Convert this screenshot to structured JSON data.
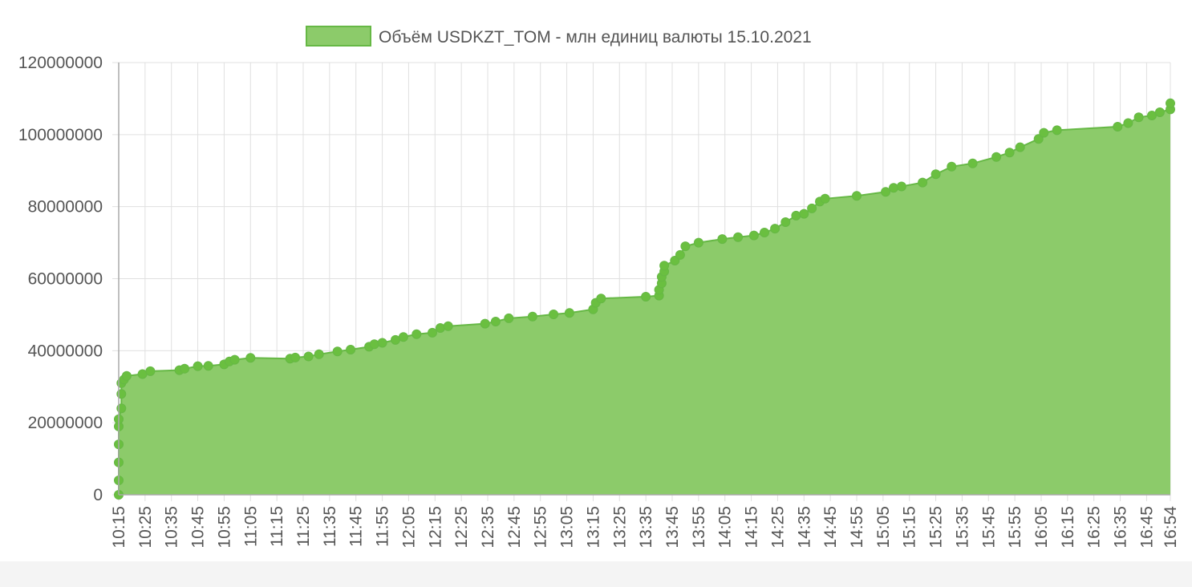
{
  "chart_data": {
    "type": "area",
    "legend": {
      "label": "Объём USDKZT_TOM - млн единиц валюты 15.10.2021",
      "color": "#8CCB6A",
      "border": "#66B845",
      "position": "top"
    },
    "colors": {
      "fill": "#8CCB6A",
      "line": "#66B845",
      "point": "#6ABF40",
      "grid": "#e0e0e0",
      "axis": "#aaaaaa"
    },
    "y_ticks": [
      "0",
      "20000000",
      "40000000",
      "60000000",
      "80000000",
      "100000000",
      "120000000"
    ],
    "ylim": [
      0,
      120000000
    ],
    "x_ticks": [
      "10:15",
      "10:25",
      "10:35",
      "10:45",
      "10:55",
      "11:05",
      "11:15",
      "11:25",
      "11:35",
      "11:45",
      "11:55",
      "12:05",
      "12:15",
      "12:25",
      "12:35",
      "12:45",
      "12:55",
      "13:05",
      "13:15",
      "13:25",
      "13:35",
      "13:45",
      "13:55",
      "14:05",
      "14:15",
      "14:25",
      "14:35",
      "14:45",
      "14:55",
      "15:05",
      "15:15",
      "15:25",
      "15:35",
      "15:45",
      "15:55",
      "16:05",
      "16:15",
      "16:25",
      "16:35",
      "16:45",
      "16:54"
    ],
    "xlim": [
      "10:15",
      "16:54"
    ],
    "grid": true,
    "points": [
      [
        "10:15",
        0
      ],
      [
        "10:15",
        4000000
      ],
      [
        "10:15",
        9000000
      ],
      [
        "10:15",
        14000000
      ],
      [
        "10:15",
        19000000
      ],
      [
        "10:15",
        21000000
      ],
      [
        "10:16",
        24000000
      ],
      [
        "10:16",
        28000000
      ],
      [
        "10:16",
        31000000
      ],
      [
        "10:17",
        32000000
      ],
      [
        "10:18",
        33000000
      ],
      [
        "10:24",
        33500000
      ],
      [
        "10:27",
        34300000
      ],
      [
        "10:38",
        34600000
      ],
      [
        "10:40",
        35000000
      ],
      [
        "10:45",
        35700000
      ],
      [
        "10:49",
        35800000
      ],
      [
        "10:55",
        36200000
      ],
      [
        "10:57",
        37000000
      ],
      [
        "10:59",
        37500000
      ],
      [
        "11:05",
        38000000
      ],
      [
        "11:20",
        37800000
      ],
      [
        "11:22",
        38100000
      ],
      [
        "11:27",
        38400000
      ],
      [
        "11:31",
        39000000
      ],
      [
        "11:38",
        39800000
      ],
      [
        "11:43",
        40300000
      ],
      [
        "11:50",
        41100000
      ],
      [
        "11:52",
        41800000
      ],
      [
        "11:55",
        42200000
      ],
      [
        "12:00",
        43000000
      ],
      [
        "12:03",
        43800000
      ],
      [
        "12:08",
        44600000
      ],
      [
        "12:14",
        45000000
      ],
      [
        "12:17",
        46300000
      ],
      [
        "12:20",
        46800000
      ],
      [
        "12:34",
        47500000
      ],
      [
        "12:38",
        48100000
      ],
      [
        "12:43",
        49000000
      ],
      [
        "12:52",
        49500000
      ],
      [
        "13:00",
        50100000
      ],
      [
        "13:06",
        50500000
      ],
      [
        "13:15",
        51500000
      ],
      [
        "13:16",
        53300000
      ],
      [
        "13:18",
        54500000
      ],
      [
        "13:35",
        55000000
      ],
      [
        "13:40",
        55300000
      ],
      [
        "13:40",
        56900000
      ],
      [
        "13:41",
        58700000
      ],
      [
        "13:41",
        60500000
      ],
      [
        "13:42",
        62000000
      ],
      [
        "13:42",
        63600000
      ],
      [
        "13:46",
        65000000
      ],
      [
        "13:48",
        66600000
      ],
      [
        "13:50",
        69000000
      ],
      [
        "13:55",
        70000000
      ],
      [
        "14:04",
        71000000
      ],
      [
        "14:10",
        71500000
      ],
      [
        "14:16",
        72000000
      ],
      [
        "14:20",
        72800000
      ],
      [
        "14:24",
        73900000
      ],
      [
        "14:28",
        75700000
      ],
      [
        "14:32",
        77500000
      ],
      [
        "14:35",
        78000000
      ],
      [
        "14:38",
        79500000
      ],
      [
        "14:41",
        81400000
      ],
      [
        "14:43",
        82200000
      ],
      [
        "14:55",
        83000000
      ],
      [
        "15:06",
        84100000
      ],
      [
        "15:09",
        85200000
      ],
      [
        "15:12",
        85600000
      ],
      [
        "15:20",
        86700000
      ],
      [
        "15:25",
        89000000
      ],
      [
        "15:31",
        91100000
      ],
      [
        "15:39",
        92000000
      ],
      [
        "15:48",
        93800000
      ],
      [
        "15:53",
        95000000
      ],
      [
        "15:57",
        96500000
      ],
      [
        "16:04",
        98800000
      ],
      [
        "16:06",
        100500000
      ],
      [
        "16:11",
        101200000
      ],
      [
        "16:34",
        102200000
      ],
      [
        "16:38",
        103200000
      ],
      [
        "16:42",
        104800000
      ],
      [
        "16:47",
        105300000
      ],
      [
        "16:50",
        106200000
      ],
      [
        "16:54",
        107000000
      ],
      [
        "16:54",
        108700000
      ]
    ]
  }
}
